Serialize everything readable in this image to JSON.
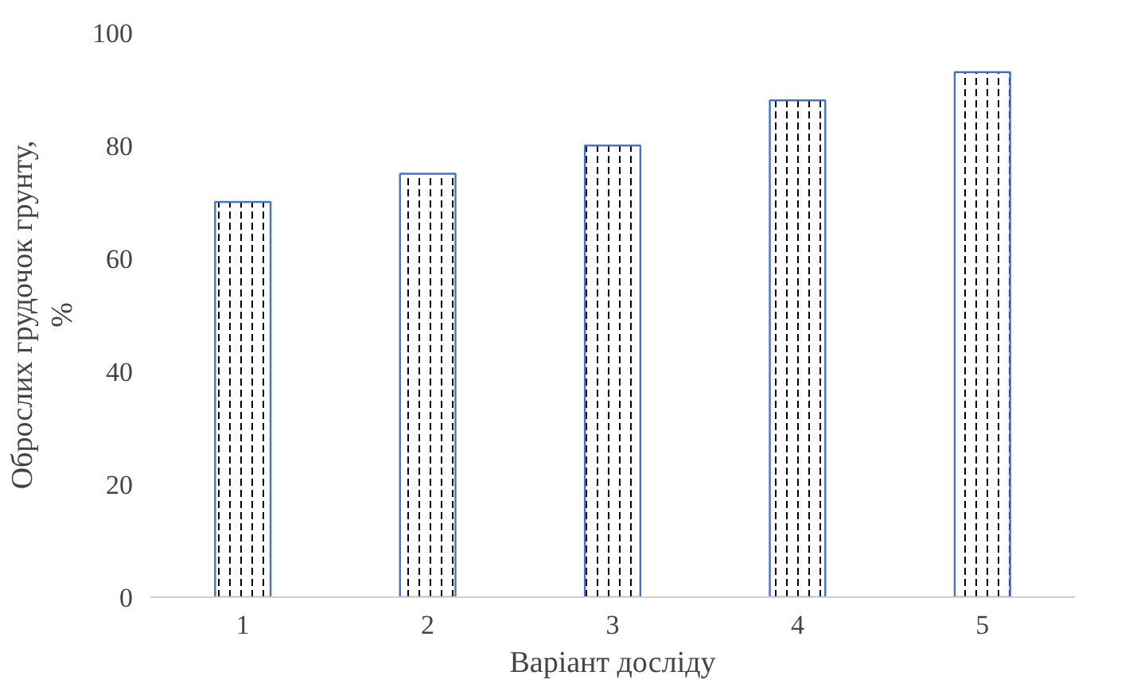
{
  "chart_data": {
    "type": "bar",
    "xlabel": "Варіант досліду",
    "ylabel": "Оброслих грудочок грунту, %",
    "categories": [
      "1",
      "2",
      "3",
      "4",
      "5"
    ],
    "values": [
      70,
      75,
      80,
      88,
      93
    ],
    "color": "#4472c4",
    "ylim": [
      0,
      100
    ],
    "yticks": [
      0,
      20,
      40,
      60,
      80,
      100
    ],
    "grid": false
  }
}
